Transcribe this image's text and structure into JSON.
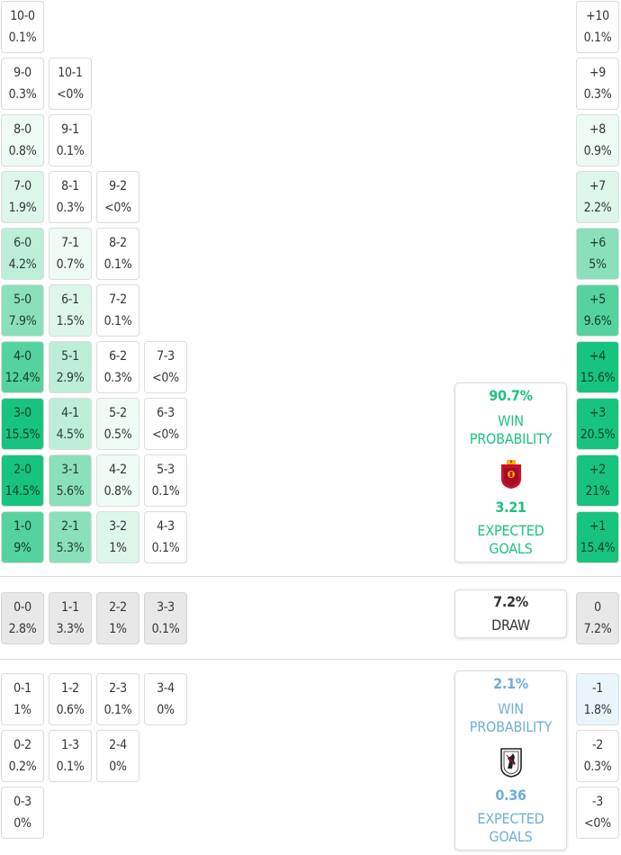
{
  "colors": {
    "accent_home": "#1bc47d",
    "accent_away": "#6eaed6",
    "draw_cell": "#e8e8e8",
    "cell_border": "#dcdcdc"
  },
  "home_scorelines": [
    {
      "score": "10-0",
      "prob": "0.1%"
    },
    {
      "score": "9-0",
      "prob": "0.3%"
    },
    {
      "score": "10-1",
      "prob": "<0%"
    },
    {
      "score": "8-0",
      "prob": "0.8%"
    },
    {
      "score": "9-1",
      "prob": "0.1%"
    },
    {
      "score": "7-0",
      "prob": "1.9%"
    },
    {
      "score": "8-1",
      "prob": "0.3%"
    },
    {
      "score": "9-2",
      "prob": "<0%"
    },
    {
      "score": "6-0",
      "prob": "4.2%"
    },
    {
      "score": "7-1",
      "prob": "0.7%"
    },
    {
      "score": "8-2",
      "prob": "0.1%"
    },
    {
      "score": "5-0",
      "prob": "7.9%"
    },
    {
      "score": "6-1",
      "prob": "1.5%"
    },
    {
      "score": "7-2",
      "prob": "0.1%"
    },
    {
      "score": "4-0",
      "prob": "12.4%"
    },
    {
      "score": "5-1",
      "prob": "2.9%"
    },
    {
      "score": "6-2",
      "prob": "0.3%"
    },
    {
      "score": "7-3",
      "prob": "<0%"
    },
    {
      "score": "3-0",
      "prob": "15.5%"
    },
    {
      "score": "4-1",
      "prob": "4.5%"
    },
    {
      "score": "5-2",
      "prob": "0.5%"
    },
    {
      "score": "6-3",
      "prob": "<0%"
    },
    {
      "score": "2-0",
      "prob": "14.5%"
    },
    {
      "score": "3-1",
      "prob": "5.6%"
    },
    {
      "score": "4-2",
      "prob": "0.8%"
    },
    {
      "score": "5-3",
      "prob": "0.1%"
    },
    {
      "score": "1-0",
      "prob": "9%"
    },
    {
      "score": "2-1",
      "prob": "5.3%"
    },
    {
      "score": "3-2",
      "prob": "1%"
    },
    {
      "score": "4-3",
      "prob": "0.1%"
    }
  ],
  "draw_scorelines": [
    {
      "score": "0-0",
      "prob": "2.8%"
    },
    {
      "score": "1-1",
      "prob": "3.3%"
    },
    {
      "score": "2-2",
      "prob": "1%"
    },
    {
      "score": "3-3",
      "prob": "0.1%"
    }
  ],
  "away_scorelines": [
    {
      "score": "0-1",
      "prob": "1%"
    },
    {
      "score": "1-2",
      "prob": "0.6%"
    },
    {
      "score": "2-3",
      "prob": "0.1%"
    },
    {
      "score": "3-4",
      "prob": "0%"
    },
    {
      "score": "0-2",
      "prob": "0.2%"
    },
    {
      "score": "1-3",
      "prob": "0.1%"
    },
    {
      "score": "2-4",
      "prob": "0%"
    },
    {
      "score": "0-3",
      "prob": "0%"
    }
  ],
  "margins": [
    {
      "label": "+10",
      "prob": "0.1%"
    },
    {
      "label": "+9",
      "prob": "0.3%"
    },
    {
      "label": "+8",
      "prob": "0.9%"
    },
    {
      "label": "+7",
      "prob": "2.2%"
    },
    {
      "label": "+6",
      "prob": "5%"
    },
    {
      "label": "+5",
      "prob": "9.6%"
    },
    {
      "label": "+4",
      "prob": "15.6%"
    },
    {
      "label": "+3",
      "prob": "20.5%"
    },
    {
      "label": "+2",
      "prob": "21%"
    },
    {
      "label": "+1",
      "prob": "15.4%"
    },
    {
      "label": "0",
      "prob": "7.2%"
    },
    {
      "label": "-1",
      "prob": "1.8%"
    },
    {
      "label": "-2",
      "prob": "0.3%"
    },
    {
      "label": "-3",
      "prob": "<0%"
    }
  ],
  "home_summary": {
    "win_pct": "90.7%",
    "win_label": "WIN PROBABILITY",
    "crest_icon": "spain-crest-icon",
    "xg": "3.21",
    "xg_label": "EXPECTED GOALS"
  },
  "draw_summary": {
    "pct": "7.2%",
    "label": "DRAW"
  },
  "away_summary": {
    "win_pct": "2.1%",
    "win_label": "WIN PROBABILITY",
    "crest_icon": "georgia-crest-icon",
    "xg": "0.36",
    "xg_label": "EXPECTED GOALS"
  }
}
